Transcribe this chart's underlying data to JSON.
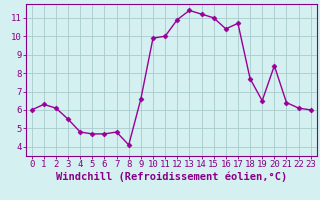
{
  "x": [
    0,
    1,
    2,
    3,
    4,
    5,
    6,
    7,
    8,
    9,
    10,
    11,
    12,
    13,
    14,
    15,
    16,
    17,
    18,
    19,
    20,
    21,
    22,
    23
  ],
  "y": [
    6.0,
    6.3,
    6.1,
    5.5,
    4.8,
    4.7,
    4.7,
    4.8,
    4.1,
    6.6,
    9.9,
    10.0,
    10.9,
    11.4,
    11.2,
    11.0,
    10.4,
    10.7,
    7.7,
    6.5,
    8.4,
    6.4,
    6.1,
    6.0
  ],
  "line_color": "#990099",
  "marker": "D",
  "marker_size": 2.5,
  "bg_color": "#d4f0f0",
  "grid_color": "#aacccc",
  "xlabel": "Windchill (Refroidissement éolien,°C)",
  "xlim": [
    -0.5,
    23.5
  ],
  "ylim": [
    3.5,
    11.75
  ],
  "yticks": [
    4,
    5,
    6,
    7,
    8,
    9,
    10,
    11
  ],
  "xticks": [
    0,
    1,
    2,
    3,
    4,
    5,
    6,
    7,
    8,
    9,
    10,
    11,
    12,
    13,
    14,
    15,
    16,
    17,
    18,
    19,
    20,
    21,
    22,
    23
  ],
  "tick_color": "#880088",
  "tick_labelsize": 6.5,
  "xlabel_fontsize": 7.5,
  "line_width": 1.0,
  "spine_color": "#880088"
}
